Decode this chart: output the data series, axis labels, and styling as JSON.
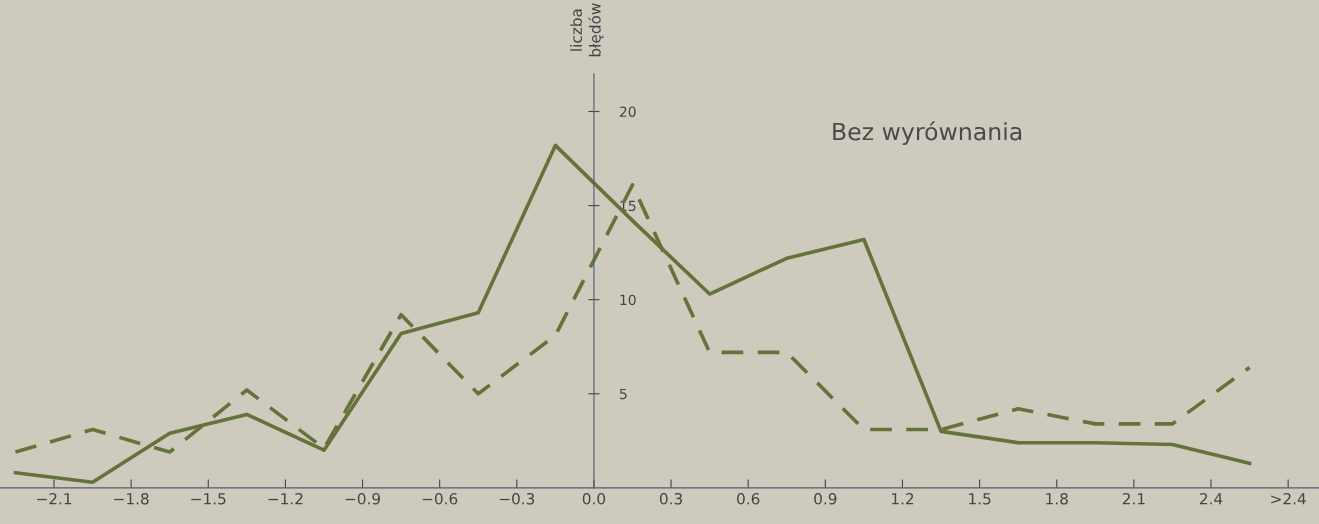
{
  "chart_data": {
    "type": "line",
    "title": "Bez wyrównania",
    "ylabel": "liczba\nbłędów",
    "x": [
      -2.25,
      -1.95,
      -1.65,
      -1.35,
      -1.05,
      -0.75,
      -0.45,
      -0.15,
      0.15,
      0.45,
      0.75,
      1.05,
      1.35,
      1.65,
      1.95,
      2.25,
      2.55
    ],
    "series": [
      {
        "color": "#65733a",
        "line_style": "solid",
        "values": [
          0.8,
          0.3,
          2.9,
          3.9,
          2.0,
          8.2,
          9.3,
          18.2,
          14.2,
          10.3,
          12.2,
          13.2,
          3.0,
          2.4,
          2.4,
          2.3,
          1.3
        ]
      },
      {
        "color": "#65733a",
        "line_style": "dashed",
        "values": [
          1.9,
          3.1,
          1.9,
          5.2,
          2.1,
          9.2,
          5.0,
          8.1,
          16.1,
          7.2,
          7.2,
          3.1,
          3.1,
          4.2,
          3.4,
          3.4,
          6.4
        ]
      }
    ],
    "xlim": [
      -2.31,
      2.82
    ],
    "ylim": [
      0,
      22
    ],
    "xticks": [
      {
        "value": -2.1,
        "label": "−2.1"
      },
      {
        "value": -1.8,
        "label": "−1.8"
      },
      {
        "value": -1.5,
        "label": "−1.5"
      },
      {
        "value": -1.2,
        "label": "−1.2"
      },
      {
        "value": -0.9,
        "label": "−0.9"
      },
      {
        "value": -0.6,
        "label": "−0.6"
      },
      {
        "value": -0.3,
        "label": "−0.3"
      },
      {
        "value": 0,
        "label": "0.0"
      },
      {
        "value": 0.3,
        "label": "0.3"
      },
      {
        "value": 0.6,
        "label": "0.6"
      },
      {
        "value": 0.9,
        "label": "0.9"
      },
      {
        "value": 1.2,
        "label": "1.2"
      },
      {
        "value": 1.5,
        "label": "1.5"
      },
      {
        "value": 1.8,
        "label": "1.8"
      },
      {
        "value": 2.1,
        "label": "2.1"
      },
      {
        "value": 2.4,
        "label": "2.4"
      },
      {
        "value": 2.7,
        "label": ">2.4"
      }
    ],
    "yticks": [
      5,
      10,
      15,
      20
    ],
    "grid": false,
    "marker": "none"
  }
}
